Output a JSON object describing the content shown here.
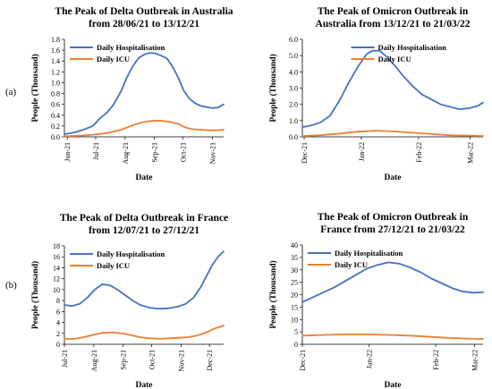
{
  "row_labels": [
    "(a)",
    "(b)"
  ],
  "chart_data": [
    {
      "type": "line",
      "title_lines": [
        "The Peak of Delta Outbreak in Australia",
        "from 28/06/21 to 13/12/21"
      ],
      "xlabel": "Date",
      "ylabel": "People (Thousand)",
      "x_range": [
        0,
        168
      ],
      "xticks": [
        {
          "pos": 3,
          "label": "Jun-21"
        },
        {
          "pos": 33,
          "label": "Jul-21"
        },
        {
          "pos": 64,
          "label": "Aug-21"
        },
        {
          "pos": 95,
          "label": "Sep-21"
        },
        {
          "pos": 125,
          "label": "Oct-21"
        },
        {
          "pos": 156,
          "label": "Nov-21"
        }
      ],
      "ylim": [
        0,
        1.8
      ],
      "yticks": [
        0,
        0.2,
        0.4,
        0.6,
        0.8,
        1.0,
        1.2,
        1.4,
        1.6,
        1.8
      ],
      "ytick_labels": [
        "0.0",
        "0.2",
        "0.4",
        "0.6",
        "0.8",
        "1.0",
        "1.2",
        "1.4",
        "1.6",
        "1.8"
      ],
      "legend_position": "top-left",
      "series": [
        {
          "name": "Daily Hospitalisation",
          "color": "#4472C4",
          "x": [
            0,
            10,
            20,
            30,
            38,
            45,
            52,
            60,
            66,
            72,
            78,
            84,
            90,
            96,
            102,
            108,
            114,
            120,
            126,
            132,
            138,
            144,
            150,
            156,
            162,
            168
          ],
          "y": [
            0.05,
            0.08,
            0.13,
            0.2,
            0.35,
            0.45,
            0.6,
            0.85,
            1.1,
            1.3,
            1.45,
            1.52,
            1.55,
            1.54,
            1.5,
            1.45,
            1.3,
            1.1,
            0.85,
            0.7,
            0.62,
            0.57,
            0.55,
            0.53,
            0.54,
            0.6
          ]
        },
        {
          "name": "Daily ICU",
          "color": "#ED7D31",
          "x": [
            0,
            15,
            30,
            45,
            60,
            70,
            80,
            90,
            100,
            110,
            120,
            128,
            136,
            144,
            152,
            160,
            168
          ],
          "y": [
            0.01,
            0.02,
            0.04,
            0.07,
            0.13,
            0.2,
            0.26,
            0.29,
            0.3,
            0.28,
            0.24,
            0.17,
            0.14,
            0.13,
            0.12,
            0.12,
            0.13
          ]
        }
      ]
    },
    {
      "type": "line",
      "title_lines": [
        "The Peak of Omicron Outbreak in",
        "Australia from 13/12/21 to 21/03/22"
      ],
      "xlabel": "Date",
      "ylabel": "People (Thousand)",
      "x_range": [
        0,
        98
      ],
      "xticks": [
        {
          "pos": 1,
          "label": "Dec-21"
        },
        {
          "pos": 32,
          "label": "Jan-22"
        },
        {
          "pos": 63,
          "label": "Feb-22"
        },
        {
          "pos": 91,
          "label": "Mar-22"
        }
      ],
      "ylim": [
        0,
        6
      ],
      "yticks": [
        0,
        1,
        2,
        3,
        4,
        5,
        6
      ],
      "ytick_labels": [
        "0.0",
        "1.0",
        "2.0",
        "3.0",
        "4.0",
        "5.0",
        "6.0"
      ],
      "legend_position": "top-right",
      "series": [
        {
          "name": "Daily Hospitalisation",
          "color": "#4472C4",
          "x": [
            0,
            5,
            10,
            15,
            20,
            25,
            30,
            35,
            38,
            42,
            46,
            50,
            55,
            60,
            65,
            70,
            75,
            80,
            85,
            90,
            95,
            98
          ],
          "y": [
            0.6,
            0.7,
            0.9,
            1.3,
            2.2,
            3.3,
            4.3,
            5.1,
            5.3,
            5.3,
            4.9,
            4.4,
            3.7,
            3.1,
            2.6,
            2.3,
            2.0,
            1.85,
            1.7,
            1.75,
            1.9,
            2.1
          ]
        },
        {
          "name": "Daily ICU",
          "color": "#ED7D31",
          "x": [
            0,
            10,
            20,
            30,
            40,
            50,
            60,
            70,
            80,
            90,
            98
          ],
          "y": [
            0.05,
            0.1,
            0.2,
            0.32,
            0.38,
            0.33,
            0.25,
            0.17,
            0.1,
            0.07,
            0.05
          ]
        }
      ]
    },
    {
      "type": "line",
      "title_lines": [
        "The Peak of Delta Outbreak in France",
        "from 12/07/21 to 27/12/21"
      ],
      "xlabel": "Date",
      "ylabel": "People (Thousand)",
      "x_range": [
        0,
        168
      ],
      "xticks": [
        {
          "pos": 0,
          "label": "Jul-21"
        },
        {
          "pos": 31,
          "label": "Aug-21"
        },
        {
          "pos": 62,
          "label": "Sep-21"
        },
        {
          "pos": 92,
          "label": "Oct-21"
        },
        {
          "pos": 123,
          "label": "Nov-21"
        },
        {
          "pos": 153,
          "label": "Dec-21"
        }
      ],
      "ylim": [
        0,
        18
      ],
      "yticks": [
        0,
        2,
        4,
        6,
        8,
        10,
        12,
        14,
        16,
        18
      ],
      "ytick_labels": [
        "0",
        "2",
        "4",
        "6",
        "8",
        "10",
        "12",
        "14",
        "16",
        "18"
      ],
      "legend_position": "top-left",
      "series": [
        {
          "name": "Daily Hospitalisation",
          "color": "#4472C4",
          "x": [
            0,
            8,
            16,
            24,
            32,
            40,
            48,
            56,
            64,
            72,
            80,
            90,
            100,
            110,
            120,
            128,
            136,
            144,
            150,
            156,
            162,
            168
          ],
          "y": [
            7.2,
            7.0,
            7.4,
            8.5,
            10.0,
            11.0,
            10.8,
            10.0,
            9.0,
            8.0,
            7.2,
            6.7,
            6.5,
            6.6,
            6.9,
            7.4,
            8.5,
            10.5,
            12.5,
            14.5,
            16.0,
            17.0
          ]
        },
        {
          "name": "Daily ICU",
          "color": "#ED7D31",
          "x": [
            0,
            10,
            20,
            30,
            40,
            50,
            60,
            70,
            80,
            90,
            100,
            110,
            120,
            130,
            140,
            150,
            160,
            168
          ],
          "y": [
            1.0,
            1.0,
            1.3,
            1.7,
            2.1,
            2.2,
            2.0,
            1.7,
            1.3,
            1.1,
            1.0,
            1.1,
            1.2,
            1.3,
            1.6,
            2.2,
            3.0,
            3.4
          ]
        }
      ]
    },
    {
      "type": "line",
      "title_lines": [
        "The Peak of Omicron Outbreak in",
        "France from 27/12/21 to 21/03/22"
      ],
      "xlabel": "Date",
      "ylabel": "People (Thousand)",
      "x_range": [
        0,
        84
      ],
      "xticks": [
        {
          "pos": 0,
          "label": "Dec-21"
        },
        {
          "pos": 31,
          "label": "Jan-22"
        },
        {
          "pos": 62,
          "label": "Feb-22"
        },
        {
          "pos": 80,
          "label": "Mar-22"
        }
      ],
      "ylim": [
        0,
        40
      ],
      "yticks": [
        0,
        5,
        10,
        15,
        20,
        25,
        30,
        35,
        40
      ],
      "ytick_labels": [
        "0",
        "5",
        "10",
        "15",
        "20",
        "25",
        "30",
        "35",
        "40"
      ],
      "legend_position": "top-left",
      "series": [
        {
          "name": "Daily Hospitalisation",
          "color": "#4472C4",
          "x": [
            0,
            5,
            10,
            15,
            20,
            25,
            30,
            35,
            40,
            45,
            50,
            55,
            60,
            65,
            70,
            75,
            80,
            84
          ],
          "y": [
            17.0,
            19.0,
            21.0,
            23.0,
            25.5,
            28.0,
            30.5,
            32.0,
            33.0,
            32.5,
            31.0,
            29.0,
            26.5,
            24.5,
            22.5,
            21.2,
            20.8,
            21.0
          ]
        },
        {
          "name": "Daily ICU",
          "color": "#ED7D31",
          "x": [
            0,
            10,
            20,
            30,
            40,
            50,
            60,
            70,
            80,
            84
          ],
          "y": [
            3.5,
            3.8,
            4.0,
            4.0,
            3.8,
            3.5,
            3.0,
            2.5,
            2.2,
            2.1
          ]
        }
      ]
    }
  ]
}
